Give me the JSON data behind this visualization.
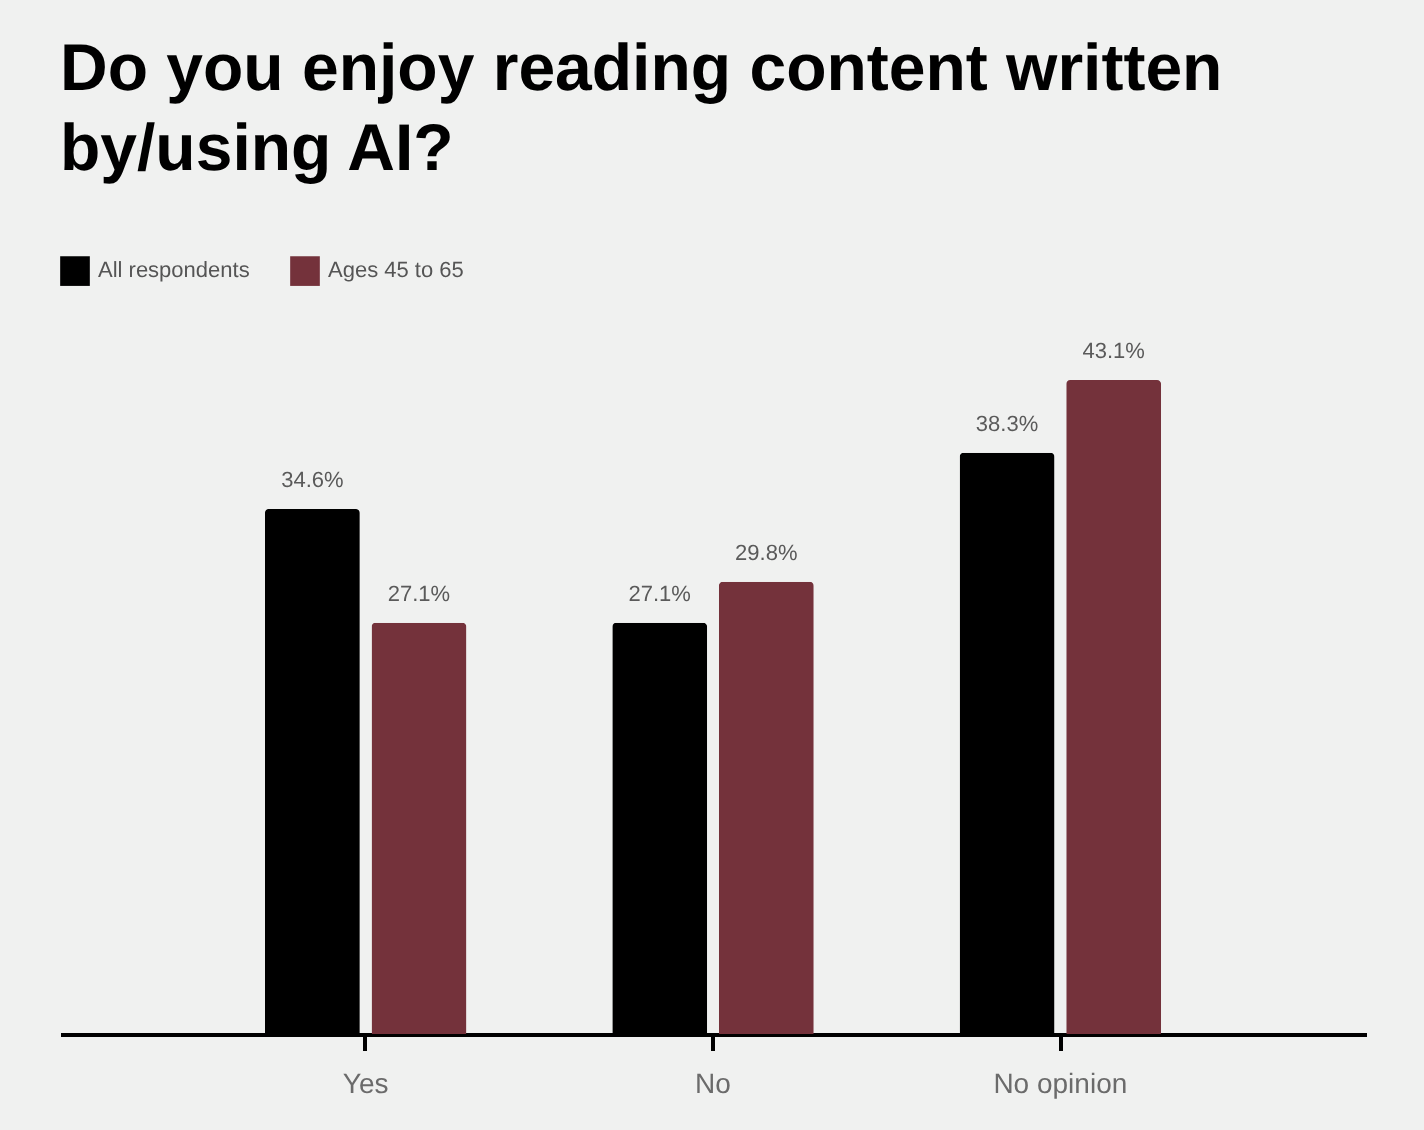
{
  "chart_data": {
    "type": "bar",
    "title": "Do you enjoy reading content written by/using AI?",
    "categories": [
      "Yes",
      "No",
      "No opinion"
    ],
    "series": [
      {
        "name": "All respondents",
        "color": "#000000",
        "values": [
          34.6,
          27.1,
          38.3
        ],
        "value_labels": [
          "34.6%",
          "27.1%",
          "38.3%"
        ]
      },
      {
        "name": "Ages 45 to 65",
        "color": "#74323b",
        "values": [
          27.1,
          29.8,
          43.1
        ],
        "value_labels": [
          "27.1%",
          "29.8%",
          "43.1%"
        ]
      }
    ],
    "legend": "top left",
    "grid": false,
    "tick_labels": "x"
  }
}
